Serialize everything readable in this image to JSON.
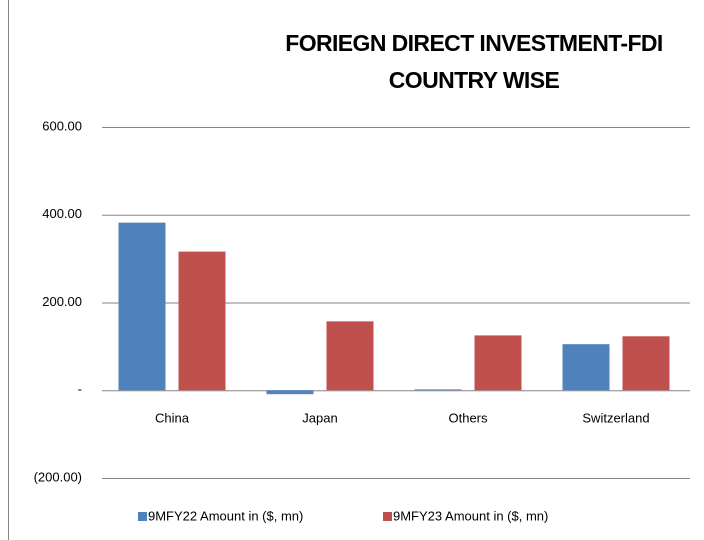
{
  "chart_data": {
    "type": "bar",
    "title": [
      "FORIEGN DIRECT INVESTMENT-FDI",
      "COUNTRY WISE"
    ],
    "categories": [
      "China",
      "Japan",
      "Others",
      "Switzerland"
    ],
    "series": [
      {
        "name": "9MFY22 Amount in ($, mn)",
        "color": "#4f81bd",
        "values": [
          382,
          -9,
          2,
          105
        ]
      },
      {
        "name": "9MFY23 Amount in ($, mn)",
        "color": "#c0504d",
        "values": [
          316,
          157,
          125,
          123
        ]
      }
    ],
    "ylim": [
      -200,
      600
    ],
    "yticks": [
      {
        "value": -200,
        "label": "(200.00)"
      },
      {
        "value": 0,
        "label": "-"
      },
      {
        "value": 200,
        "label": "200.00"
      },
      {
        "value": 400,
        "label": "400.00"
      },
      {
        "value": 600,
        "label": "600.00"
      }
    ],
    "grid": true,
    "legend": "bottom"
  }
}
